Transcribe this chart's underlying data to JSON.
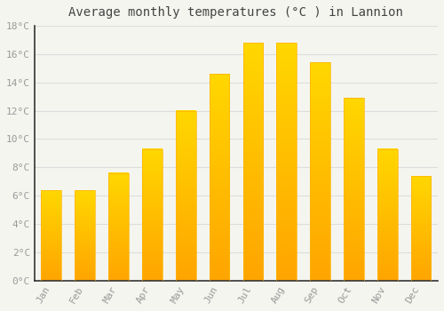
{
  "title": "Average monthly temperatures (°C ) in Lannion",
  "months": [
    "Jan",
    "Feb",
    "Mar",
    "Apr",
    "May",
    "Jun",
    "Jul",
    "Aug",
    "Sep",
    "Oct",
    "Nov",
    "Dec"
  ],
  "temperatures": [
    6.4,
    6.4,
    7.6,
    9.3,
    12.0,
    14.6,
    16.8,
    16.8,
    15.4,
    12.9,
    9.3,
    7.4
  ],
  "bar_color_bottom": "#FFA500",
  "bar_color_top": "#FFD700",
  "background_color": "#F5F5F0",
  "grid_color": "#DDDDDD",
  "tick_label_color": "#999999",
  "title_color": "#444444",
  "spine_color": "#333333",
  "ylim": [
    0,
    18
  ],
  "yticks": [
    0,
    2,
    4,
    6,
    8,
    10,
    12,
    14,
    16,
    18
  ],
  "title_fontsize": 10,
  "tick_fontsize": 8,
  "bar_width": 0.6
}
